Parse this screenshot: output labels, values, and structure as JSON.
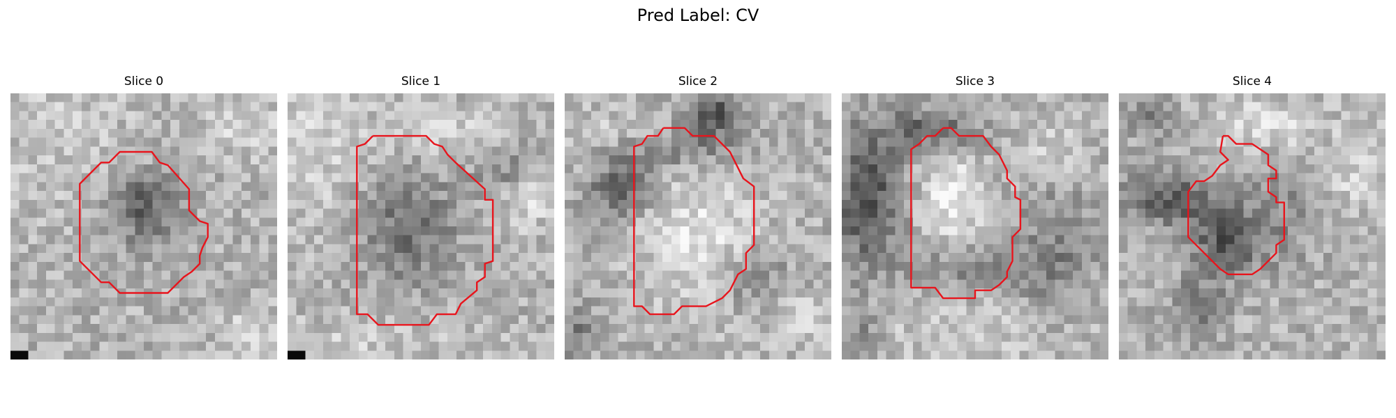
{
  "figure": {
    "title": "Pred Label: CV"
  },
  "panels": [
    {
      "title": "Slice 0",
      "bright": [
        [
          0.18,
          0.12,
          0.3,
          0.4,
          0.4,
          0.18
        ],
        [
          0.88,
          0.14,
          0.14,
          0.1,
          0.35,
          0.32
        ],
        [
          0.9,
          0.9,
          0.1,
          0.1,
          0.65,
          0.28
        ]
      ],
      "dark": [
        [
          0.5,
          0.43,
          0.14,
          0.13,
          0.65,
          0.45
        ]
      ],
      "contour": [
        [
          0.44,
          0.22
        ],
        [
          0.53,
          0.22
        ],
        [
          0.56,
          0.26
        ],
        [
          0.59,
          0.27
        ],
        [
          0.67,
          0.36
        ],
        [
          0.67,
          0.44
        ],
        [
          0.71,
          0.48
        ],
        [
          0.74,
          0.49
        ],
        [
          0.74,
          0.54
        ],
        [
          0.72,
          0.58
        ],
        [
          0.71,
          0.61
        ],
        [
          0.71,
          0.64
        ],
        [
          0.68,
          0.67
        ],
        [
          0.65,
          0.69
        ],
        [
          0.59,
          0.75
        ],
        [
          0.41,
          0.75
        ],
        [
          0.37,
          0.71
        ],
        [
          0.34,
          0.71
        ],
        [
          0.26,
          0.63
        ],
        [
          0.26,
          0.34
        ],
        [
          0.34,
          0.26
        ],
        [
          0.37,
          0.26
        ],
        [
          0.41,
          0.22
        ],
        [
          0.44,
          0.22
        ]
      ]
    },
    {
      "title": "Slice 1",
      "bright": [
        [
          0.1,
          0.2,
          0.2,
          0.3,
          0.45,
          0.3
        ],
        [
          0.6,
          0.15,
          0.25,
          0.1,
          0.45,
          0.3
        ],
        [
          0.2,
          0.94,
          0.5,
          0.1,
          0.7,
          0.15
        ],
        [
          0.9,
          0.4,
          0.08,
          0.1,
          0.65,
          0.28
        ]
      ],
      "dark": [
        [
          0.45,
          0.5,
          0.18,
          0.22,
          0.55,
          0.42
        ],
        [
          0.82,
          0.28,
          0.12,
          0.1,
          0.45,
          0.3
        ]
      ],
      "contour": [
        [
          0.32,
          0.16
        ],
        [
          0.52,
          0.16
        ],
        [
          0.55,
          0.19
        ],
        [
          0.58,
          0.2
        ],
        [
          0.6,
          0.23
        ],
        [
          0.63,
          0.26
        ],
        [
          0.74,
          0.36
        ],
        [
          0.74,
          0.4
        ],
        [
          0.77,
          0.4
        ],
        [
          0.77,
          0.63
        ],
        [
          0.74,
          0.64
        ],
        [
          0.74,
          0.69
        ],
        [
          0.71,
          0.71
        ],
        [
          0.71,
          0.74
        ],
        [
          0.65,
          0.79
        ],
        [
          0.63,
          0.83
        ],
        [
          0.56,
          0.83
        ],
        [
          0.53,
          0.87
        ],
        [
          0.34,
          0.87
        ],
        [
          0.3,
          0.83
        ],
        [
          0.26,
          0.83
        ],
        [
          0.26,
          0.2
        ],
        [
          0.29,
          0.19
        ],
        [
          0.32,
          0.16
        ]
      ]
    },
    {
      "title": "Slice 2",
      "bright": [
        [
          0.5,
          0.55,
          0.22,
          0.25,
          0.55,
          0.3
        ],
        [
          0.15,
          0.2,
          0.15,
          0.15,
          0.45,
          0.25
        ],
        [
          0.9,
          0.85,
          0.1,
          0.1,
          0.4,
          0.3
        ]
      ],
      "dark": [
        [
          0.55,
          0.08,
          0.1,
          0.1,
          0.8,
          0.45
        ],
        [
          0.2,
          0.35,
          0.12,
          0.12,
          0.75,
          0.4
        ],
        [
          0.4,
          0.22,
          0.25,
          0.06,
          0.45,
          0.35
        ],
        [
          0.7,
          0.7,
          0.15,
          0.1,
          0.45,
          0.35
        ],
        [
          0.04,
          0.9,
          0.08,
          0.1,
          0.5,
          0.35
        ]
      ],
      "contour": [
        [
          0.37,
          0.13
        ],
        [
          0.45,
          0.13
        ],
        [
          0.48,
          0.16
        ],
        [
          0.56,
          0.16
        ],
        [
          0.62,
          0.22
        ],
        [
          0.64,
          0.26
        ],
        [
          0.67,
          0.32
        ],
        [
          0.71,
          0.35
        ],
        [
          0.71,
          0.57
        ],
        [
          0.68,
          0.6
        ],
        [
          0.68,
          0.66
        ],
        [
          0.65,
          0.68
        ],
        [
          0.62,
          0.74
        ],
        [
          0.59,
          0.77
        ],
        [
          0.53,
          0.8
        ],
        [
          0.44,
          0.8
        ],
        [
          0.41,
          0.83
        ],
        [
          0.32,
          0.83
        ],
        [
          0.29,
          0.8
        ],
        [
          0.26,
          0.8
        ],
        [
          0.26,
          0.2
        ],
        [
          0.29,
          0.19
        ],
        [
          0.31,
          0.16
        ],
        [
          0.35,
          0.16
        ],
        [
          0.37,
          0.13
        ]
      ]
    },
    {
      "title": "Slice 3",
      "bright": [
        [
          0.42,
          0.4,
          0.12,
          0.18,
          0.7,
          0.34
        ],
        [
          0.8,
          0.2,
          0.12,
          0.12,
          0.3,
          0.28
        ],
        [
          0.5,
          0.9,
          0.4,
          0.12,
          0.4,
          0.25
        ]
      ],
      "dark": [
        [
          0.1,
          0.4,
          0.12,
          0.25,
          0.8,
          0.45
        ],
        [
          0.33,
          0.14,
          0.18,
          0.08,
          0.7,
          0.4
        ],
        [
          0.5,
          0.65,
          0.2,
          0.08,
          0.55,
          0.35
        ],
        [
          0.8,
          0.6,
          0.15,
          0.25,
          0.45,
          0.35
        ],
        [
          0.04,
          0.9,
          0.1,
          0.1,
          0.45,
          0.35
        ]
      ],
      "contour": [
        [
          0.38,
          0.13
        ],
        [
          0.41,
          0.13
        ],
        [
          0.44,
          0.16
        ],
        [
          0.53,
          0.16
        ],
        [
          0.56,
          0.2
        ],
        [
          0.59,
          0.23
        ],
        [
          0.62,
          0.29
        ],
        [
          0.62,
          0.32
        ],
        [
          0.65,
          0.35
        ],
        [
          0.65,
          0.39
        ],
        [
          0.67,
          0.4
        ],
        [
          0.67,
          0.51
        ],
        [
          0.64,
          0.54
        ],
        [
          0.64,
          0.63
        ],
        [
          0.62,
          0.67
        ],
        [
          0.62,
          0.69
        ],
        [
          0.59,
          0.72
        ],
        [
          0.56,
          0.74
        ],
        [
          0.5,
          0.74
        ],
        [
          0.5,
          0.77
        ],
        [
          0.41,
          0.77
        ],
        [
          0.38,
          0.77
        ],
        [
          0.35,
          0.73
        ],
        [
          0.26,
          0.73
        ],
        [
          0.26,
          0.21
        ],
        [
          0.29,
          0.19
        ],
        [
          0.32,
          0.16
        ],
        [
          0.35,
          0.16
        ],
        [
          0.38,
          0.13
        ]
      ]
    },
    {
      "title": "Slice 4",
      "bright": [
        [
          0.55,
          0.12,
          0.18,
          0.1,
          0.55,
          0.3
        ],
        [
          0.88,
          0.3,
          0.12,
          0.15,
          0.35,
          0.3
        ]
      ],
      "dark": [
        [
          0.4,
          0.55,
          0.12,
          0.12,
          0.8,
          0.4
        ],
        [
          0.2,
          0.4,
          0.18,
          0.1,
          0.75,
          0.4
        ],
        [
          0.12,
          0.1,
          0.08,
          0.08,
          0.5,
          0.35
        ],
        [
          0.3,
          0.8,
          0.1,
          0.12,
          0.55,
          0.35
        ],
        [
          0.6,
          0.45,
          0.15,
          0.2,
          0.45,
          0.3
        ]
      ],
      "contour": [
        [
          0.39,
          0.16
        ],
        [
          0.41,
          0.16
        ],
        [
          0.44,
          0.19
        ],
        [
          0.5,
          0.19
        ],
        [
          0.53,
          0.21
        ],
        [
          0.56,
          0.23
        ],
        [
          0.56,
          0.27
        ],
        [
          0.59,
          0.29
        ],
        [
          0.59,
          0.32
        ],
        [
          0.56,
          0.32
        ],
        [
          0.56,
          0.37
        ],
        [
          0.59,
          0.39
        ],
        [
          0.59,
          0.41
        ],
        [
          0.62,
          0.41
        ],
        [
          0.62,
          0.55
        ],
        [
          0.59,
          0.57
        ],
        [
          0.59,
          0.6
        ],
        [
          0.56,
          0.63
        ],
        [
          0.53,
          0.66
        ],
        [
          0.5,
          0.68
        ],
        [
          0.41,
          0.68
        ],
        [
          0.38,
          0.66
        ],
        [
          0.32,
          0.6
        ],
        [
          0.26,
          0.54
        ],
        [
          0.26,
          0.37
        ],
        [
          0.29,
          0.33
        ],
        [
          0.32,
          0.33
        ],
        [
          0.35,
          0.31
        ],
        [
          0.38,
          0.27
        ],
        [
          0.41,
          0.25
        ],
        [
          0.38,
          0.22
        ],
        [
          0.39,
          0.16
        ]
      ]
    }
  ],
  "colors": {
    "contour": "#e8141c",
    "background": "#ffffff"
  }
}
